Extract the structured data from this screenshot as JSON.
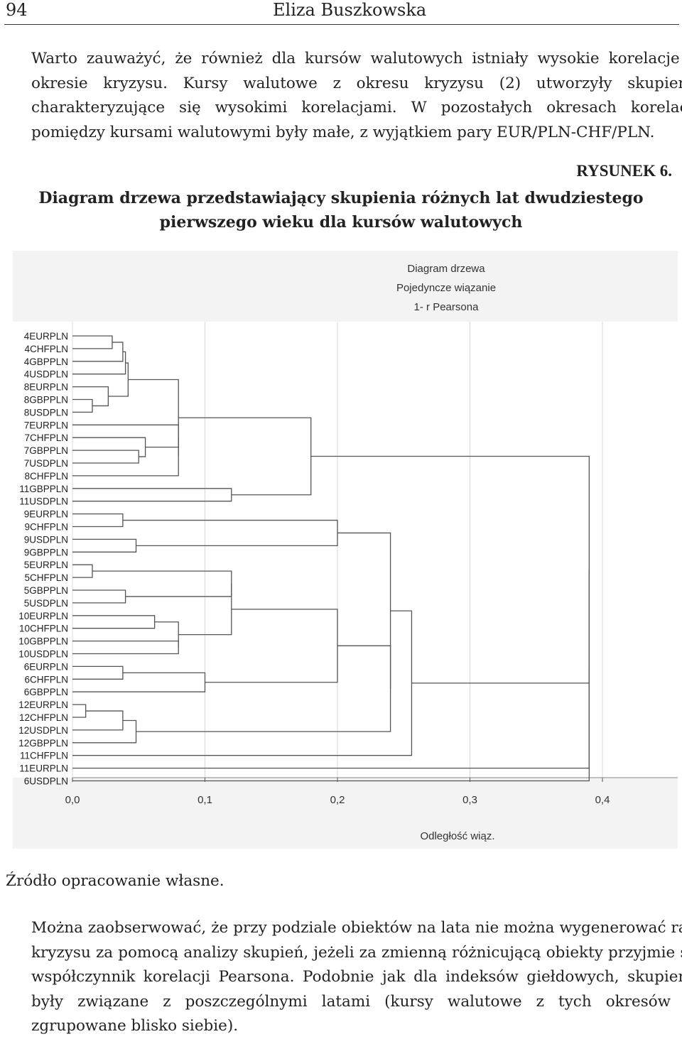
{
  "header": {
    "page_number": "94",
    "author": "Eliza Buszkowska"
  },
  "paragraph1": "Warto zauważyć, że również dla kursów walutowych istniały wysokie korelacje w okresie kryzysu. Kursy walutowe z okresu kryzysu (2) utworzyły skupienie charakteryzujące się wysokimi korelacjami. W pozostałych okresach korelacje pomiędzy kursami walutowymi były małe, z wyjątkiem pary EUR/PLN-CHF/PLN.",
  "figure": {
    "label": "RYSUNEK 6.",
    "caption": "Diagram drzewa przedstawiający skupienia różnych lat dwudziestego pierwszego wieku dla kursów walutowych",
    "source": "Źródło opracowanie własne."
  },
  "chart_data": {
    "type": "dendrogram",
    "title": "Diagram drzewa",
    "subtitle1": "Pojedyncze wiązanie",
    "subtitle2": "1- r Pearsona",
    "xlabel": "Odległość wiąz.",
    "xlim": [
      0.0,
      0.45
    ],
    "ticks": [
      "0,0",
      "0,1",
      "0,2",
      "0,3",
      "0,4"
    ],
    "tick_values": [
      0.0,
      0.1,
      0.2,
      0.3,
      0.4
    ],
    "grid": true,
    "leaves": [
      "4EURPLN",
      "4CHFPLN",
      "4GBPPLN",
      "4USDPLN",
      "8EURPLN",
      "8GBPPLN",
      "8USDPLN",
      "7EURPLN",
      "7CHFPLN",
      "7GBPPLN",
      "7USDPLN",
      "8CHFPLN",
      "11GBPPLN",
      "11USDPLN",
      "9EURPLN",
      "9CHFPLN",
      "9USDPLN",
      "9GBPPLN",
      "5EURPLN",
      "5CHFPLN",
      "5GBPPLN",
      "5USDPLN",
      "10EURPLN",
      "10CHFPLN",
      "10GBPPLN",
      "10USDPLN",
      "6EURPLN",
      "6CHFPLN",
      "6GBPPLN",
      "12EURPLN",
      "12CHFPLN",
      "12USDPLN",
      "12GBPPLN",
      "11CHFPLN",
      "11EURPLN",
      "6USDPLN"
    ],
    "merges": [
      {
        "a": "4EURPLN",
        "b": "4CHFPLN",
        "height": 0.03,
        "id": "c1"
      },
      {
        "a": "c1",
        "b": "4GBPPLN",
        "height": 0.038,
        "id": "c2"
      },
      {
        "a": "c2",
        "b": "4USDPLN",
        "height": 0.04,
        "id": "c3"
      },
      {
        "a": "8GBPPLN",
        "b": "8USDPLN",
        "height": 0.015,
        "id": "c4"
      },
      {
        "a": "8EURPLN",
        "b": "c4",
        "height": 0.027,
        "id": "c5"
      },
      {
        "a": "c3",
        "b": "c5",
        "height": 0.042,
        "id": "c6"
      },
      {
        "a": "7GBPPLN",
        "b": "7USDPLN",
        "height": 0.05,
        "id": "c7"
      },
      {
        "a": "7CHFPLN",
        "b": "c7",
        "height": 0.055,
        "id": "c8"
      },
      {
        "a": "7EURPLN",
        "b": "c8",
        "height": 0.08,
        "id": "c9"
      },
      {
        "a": "c9",
        "b": "8CHFPLN",
        "height": 0.08,
        "id": "c10"
      },
      {
        "a": "c6",
        "b": "c10",
        "height": 0.08,
        "id": "c11"
      },
      {
        "a": "11GBPPLN",
        "b": "11USDPLN",
        "height": 0.12,
        "id": "c12"
      },
      {
        "a": "c11",
        "b": "c12",
        "height": 0.18,
        "id": "c13"
      },
      {
        "a": "9EURPLN",
        "b": "9CHFPLN",
        "height": 0.038,
        "id": "c14"
      },
      {
        "a": "9USDPLN",
        "b": "9GBPPLN",
        "height": 0.048,
        "id": "c15"
      },
      {
        "a": "c14",
        "b": "c15",
        "height": 0.2,
        "id": "c16"
      },
      {
        "a": "5EURPLN",
        "b": "5CHFPLN",
        "height": 0.015,
        "id": "c17"
      },
      {
        "a": "5GBPPLN",
        "b": "5USDPLN",
        "height": 0.04,
        "id": "c18"
      },
      {
        "a": "c17",
        "b": "c18",
        "height": 0.12,
        "id": "c19"
      },
      {
        "a": "10EURPLN",
        "b": "10CHFPLN",
        "height": 0.062,
        "id": "c20"
      },
      {
        "a": "10GBPPLN",
        "b": "10USDPLN",
        "height": 0.08,
        "id": "c21"
      },
      {
        "a": "c20",
        "b": "c21",
        "height": 0.08,
        "id": "c22"
      },
      {
        "a": "c19",
        "b": "c22",
        "height": 0.12,
        "id": "c23"
      },
      {
        "a": "6EURPLN",
        "b": "6CHFPLN",
        "height": 0.038,
        "id": "c24"
      },
      {
        "a": "c24",
        "b": "6GBPPLN",
        "height": 0.1,
        "id": "c25"
      },
      {
        "a": "c23",
        "b": "c25",
        "height": 0.2,
        "id": "c26"
      },
      {
        "a": "12EURPLN",
        "b": "12CHFPLN",
        "height": 0.01,
        "id": "c27"
      },
      {
        "a": "c27",
        "b": "12USDPLN",
        "height": 0.038,
        "id": "c28"
      },
      {
        "a": "c28",
        "b": "12GBPPLN",
        "height": 0.048,
        "id": "c29"
      },
      {
        "a": "c26",
        "b": "c29",
        "height": 0.24,
        "id": "c30"
      },
      {
        "a": "c16",
        "b": "c30",
        "height": 0.24,
        "id": "c31"
      },
      {
        "a": "c31",
        "b": "11CHFPLN",
        "height": 0.256,
        "id": "c32"
      },
      {
        "a": "c13",
        "b": "c32",
        "height": 0.39,
        "id": "c33"
      },
      {
        "a": "c33",
        "b": "11EURPLN",
        "height": 0.39,
        "id": "c34"
      },
      {
        "a": "c34",
        "b": "6USDPLN",
        "height": 0.39,
        "id": "c35"
      }
    ]
  },
  "paragraph2": "Można zaobserwować, że przy podziale obiektów na lata nie można wygenerować ram kryzysu za pomocą analizy skupień, jeżeli za zmienną różnicującą obiekty przyjmie się współczynnik korelacji Pearsona. Podobnie jak dla indeksów giełdowych, skupienia były związane z poszczególnymi latami (kursy walutowe z tych okresów są zgrupowane blisko siebie)."
}
